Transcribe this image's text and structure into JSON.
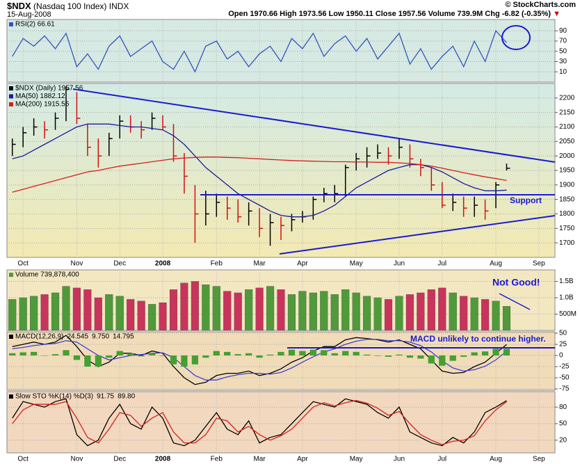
{
  "header": {
    "symbol": "$NDX",
    "name": "(Nasdaq 100 Index) INDX",
    "date": "15-Aug-2008",
    "quote": "Open 1970.66 High 1973.56 Low 1950.11 Close 1957.56 Volume 739.9M Chg -6.82 (-0.35%)",
    "copyright": "© StockCharts.com"
  },
  "annotations": {
    "support": "Support",
    "volume": "Not Good!",
    "macd": "MACD unlikely to continue higher."
  },
  "chart_data": [
    {
      "type": "line",
      "title": "RSI(2) 66.61",
      "ylim": [
        -10,
        112
      ],
      "yticks": [
        10,
        30,
        50,
        70,
        90
      ],
      "grid": true,
      "series": [
        {
          "type": "line",
          "color": "#3355bb",
          "values": [
            40,
            75,
            60,
            80,
            55,
            85,
            20,
            45,
            15,
            60,
            80,
            40,
            55,
            70,
            30,
            15,
            50,
            10,
            60,
            70,
            35,
            50,
            20,
            45,
            60,
            30,
            75,
            55,
            85,
            40,
            65,
            80,
            50,
            75,
            35,
            60,
            85,
            25,
            55,
            15,
            40,
            60,
            20,
            70,
            30,
            90,
            66.61,
            null,
            null,
            null,
            null
          ]
        }
      ]
    },
    {
      "type": "ohlc",
      "ylim": [
        1650,
        2250
      ],
      "yticks": [
        1700,
        1750,
        1800,
        1850,
        1900,
        1950,
        2000,
        2050,
        2100,
        2150,
        2200
      ],
      "grid": true,
      "categories": [
        null,
        "Oct",
        null,
        null,
        null,
        null,
        "Nov",
        null,
        null,
        null,
        "Dec",
        null,
        null,
        null,
        "2008",
        null,
        null,
        null,
        null,
        "Feb",
        null,
        null,
        null,
        "Mar",
        null,
        null,
        null,
        "Apr",
        null,
        null,
        null,
        null,
        "May",
        null,
        null,
        null,
        "Jun",
        null,
        null,
        null,
        "Jul",
        null,
        null,
        null,
        null,
        "Aug",
        null,
        null,
        null,
        "Sep",
        null
      ],
      "series": [
        {
          "type": "hlc",
          "name": "$NDX (Daily) 1957.56",
          "color": "#000000",
          "down_color": "#d01010",
          "high": [
            2060,
            2100,
            2130,
            2120,
            2150,
            2240,
            2220,
            2110,
            2060,
            2080,
            2140,
            2140,
            2120,
            2150,
            2140,
            2110,
            2010,
            1900,
            1880,
            1870,
            1860,
            1850,
            1840,
            1820,
            1800,
            1790,
            1800,
            1810,
            1860,
            1890,
            1900,
            1970,
            2010,
            2030,
            2040,
            2030,
            2060,
            2040,
            1990,
            1960,
            1910,
            1870,
            1860,
            1860,
            1850,
            1910,
            1973.56,
            null,
            null,
            null,
            null
          ],
          "low": [
            2000,
            2030,
            2070,
            2060,
            2090,
            2120,
            2110,
            2000,
            1960,
            2000,
            2060,
            2080,
            2060,
            2090,
            2090,
            1980,
            1870,
            1700,
            1760,
            1790,
            1780,
            1770,
            1760,
            1720,
            1690,
            1710,
            1740,
            1770,
            1780,
            1840,
            1840,
            1860,
            1950,
            1960,
            1990,
            1970,
            1990,
            1960,
            1930,
            1880,
            1820,
            1810,
            1790,
            1790,
            1780,
            1820,
            1950.11,
            null,
            null,
            null,
            null
          ],
          "close": [
            2040,
            2080,
            2100,
            2090,
            2130,
            2230,
            2130,
            2030,
            2000,
            2060,
            2120,
            2100,
            2090,
            2130,
            2100,
            2000,
            1930,
            1800,
            1800,
            1840,
            1820,
            1790,
            1810,
            1750,
            1770,
            1760,
            1780,
            1790,
            1850,
            1870,
            1870,
            1960,
            1990,
            2000,
            2010,
            2000,
            2030,
            1990,
            1960,
            1900,
            1830,
            1840,
            1820,
            1830,
            1810,
            1900,
            1957.56,
            null,
            null,
            null,
            null
          ]
        },
        {
          "type": "line",
          "name": "MA(50) 1882.12",
          "color": "#1a1a9a",
          "values": [
            1990,
            2000,
            2020,
            2040,
            2060,
            2080,
            2100,
            2110,
            2110,
            2110,
            2105,
            2100,
            2100,
            2095,
            2090,
            2070,
            2040,
            2000,
            1960,
            1930,
            1900,
            1870,
            1850,
            1830,
            1810,
            1795,
            1790,
            1790,
            1795,
            1810,
            1830,
            1860,
            1890,
            1910,
            1930,
            1950,
            1960,
            1970,
            1970,
            1960,
            1945,
            1925,
            1905,
            1890,
            1880,
            1880,
            1882.12,
            null,
            null,
            null,
            null
          ]
        },
        {
          "type": "line",
          "name": "MA(200) 1915.56",
          "color": "#d42020",
          "values": [
            1875,
            1885,
            1895,
            1905,
            1915,
            1925,
            1935,
            1945,
            1950,
            1958,
            1965,
            1970,
            1975,
            1980,
            1985,
            1990,
            1993,
            1995,
            1996,
            1996,
            1995,
            1994,
            1992,
            1990,
            1988,
            1986,
            1984,
            1983,
            1982,
            1981,
            1980,
            1980,
            1979,
            1979,
            1978,
            1978,
            1976,
            1974,
            1970,
            1965,
            1958,
            1950,
            1942,
            1935,
            1928,
            1922,
            1915.56,
            null,
            null,
            null,
            null
          ]
        }
      ]
    },
    {
      "type": "bar",
      "title": "Volume 739,878,400",
      "ylim": [
        0,
        1850000000
      ],
      "yticks": [
        {
          "value": 500000000,
          "label": "500M"
        },
        {
          "value": 1000000000,
          "label": "1.0B"
        },
        {
          "value": 1500000000,
          "label": "1.5B"
        }
      ],
      "grid": true,
      "series": [
        {
          "type": "bar",
          "color": "#4f9a3a",
          "down_color": "#c8345c",
          "values": [
            950000000,
            1000000000,
            1050000000,
            1100000000,
            1150000000,
            1350000000,
            1300000000,
            1250000000,
            1000000000,
            1100000000,
            1050000000,
            950000000,
            900000000,
            800000000,
            850000000,
            1250000000,
            1450000000,
            1500000000,
            1400000000,
            1350000000,
            1200000000,
            1150000000,
            1250000000,
            1300000000,
            1350000000,
            1250000000,
            1100000000,
            1200000000,
            1150000000,
            1200000000,
            1100000000,
            1250000000,
            1150000000,
            1050000000,
            1000000000,
            950000000,
            1050000000,
            1100000000,
            1150000000,
            1250000000,
            1300000000,
            1150000000,
            1050000000,
            1000000000,
            950000000,
            900000000,
            739878400,
            null,
            null,
            null,
            null
          ]
        }
      ]
    },
    {
      "type": "line",
      "title": "MACD(12,26,9)",
      "ylim": [
        -78,
        53
      ],
      "yticks": [
        -75,
        -50,
        -25,
        0,
        25,
        50
      ],
      "grid": true,
      "legend_values": [
        "24.545",
        "9.750",
        "14.795"
      ],
      "series": [
        {
          "type": "line",
          "color": "#000000",
          "values": [
            20,
            25,
            30,
            25,
            30,
            45,
            20,
            -10,
            -25,
            -15,
            5,
            5,
            0,
            10,
            5,
            -25,
            -50,
            -65,
            -60,
            -45,
            -40,
            -40,
            -35,
            -45,
            -40,
            -30,
            -15,
            -5,
            10,
            20,
            20,
            35,
            40,
            38,
            35,
            30,
            35,
            25,
            15,
            -10,
            -35,
            -40,
            -38,
            -25,
            -15,
            5,
            24.545,
            null,
            null,
            null,
            null
          ]
        },
        {
          "type": "line",
          "color": "#4040d0",
          "values": [
            15,
            18,
            22,
            25,
            27,
            33,
            30,
            15,
            0,
            -10,
            -5,
            0,
            2,
            5,
            6,
            -5,
            -25,
            -45,
            -55,
            -55,
            -48,
            -43,
            -40,
            -40,
            -42,
            -38,
            -28,
            -15,
            -3,
            8,
            15,
            25,
            32,
            36,
            36,
            33,
            33,
            30,
            22,
            8,
            -12,
            -28,
            -35,
            -32,
            -24,
            -10,
            9.75,
            null,
            null,
            null,
            null
          ]
        },
        {
          "type": "histogram",
          "color": "#44a030",
          "values": [
            5,
            7,
            8,
            0,
            3,
            12,
            -10,
            -25,
            -25,
            -5,
            10,
            5,
            -2,
            5,
            -1,
            -20,
            -25,
            -20,
            -5,
            10,
            8,
            3,
            5,
            -5,
            2,
            8,
            13,
            10,
            13,
            12,
            5,
            10,
            8,
            2,
            -1,
            -3,
            2,
            -5,
            -7,
            -18,
            -23,
            -12,
            -3,
            7,
            9,
            15,
            14.795,
            null,
            null,
            null,
            null
          ]
        }
      ]
    },
    {
      "type": "line",
      "title": "Slow STO %K(14) %D(3)",
      "ylim": [
        -3,
        108
      ],
      "yticks": [
        20,
        50,
        80
      ],
      "grid": true,
      "legend_values": [
        "91.75",
        "89.80"
      ],
      "series": [
        {
          "type": "line",
          "color": "#000000",
          "values": [
            60,
            90,
            85,
            80,
            90,
            95,
            30,
            10,
            20,
            60,
            85,
            50,
            40,
            80,
            60,
            15,
            10,
            20,
            45,
            70,
            40,
            30,
            55,
            15,
            25,
            30,
            50,
            70,
            90,
            85,
            80,
            95,
            90,
            85,
            70,
            60,
            80,
            35,
            25,
            15,
            10,
            25,
            15,
            35,
            70,
            80,
            91.75,
            null,
            null,
            null,
            null
          ]
        },
        {
          "type": "line",
          "color": "#d42020",
          "values": [
            50,
            75,
            85,
            85,
            85,
            90,
            60,
            25,
            15,
            40,
            70,
            65,
            45,
            60,
            70,
            35,
            15,
            15,
            30,
            60,
            55,
            35,
            45,
            30,
            20,
            28,
            40,
            60,
            80,
            88,
            82,
            88,
            92,
            87,
            78,
            65,
            72,
            50,
            30,
            20,
            12,
            18,
            20,
            28,
            55,
            75,
            89.8,
            null,
            null,
            null,
            null
          ]
        }
      ]
    }
  ]
}
